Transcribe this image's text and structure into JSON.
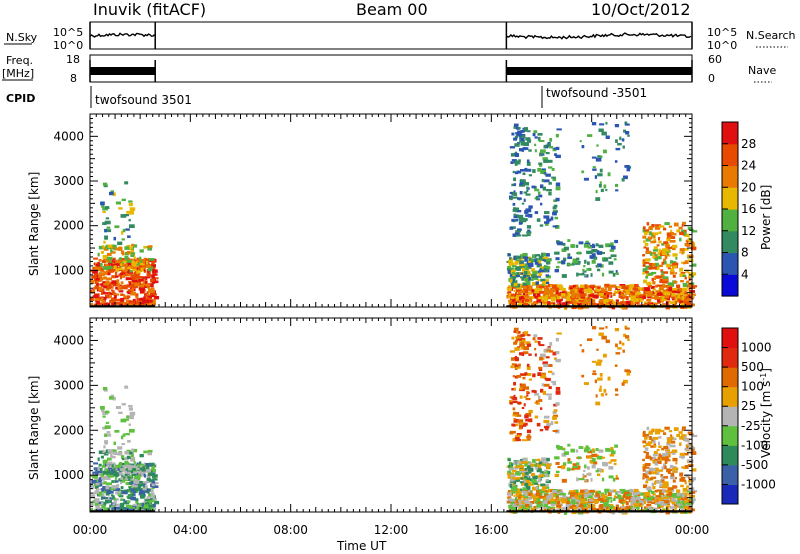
{
  "header": {
    "station": "Inuvik (fitACF)",
    "beam": "Beam 00",
    "date": "10/Oct/2012"
  },
  "panels": {
    "nsky": {
      "label": "N.Sky",
      "ticks": [
        "10^5",
        "10^0"
      ]
    },
    "freq": {
      "label_line1": "Freq.",
      "label_line2": "[MHz]",
      "ticks": [
        "18",
        "8"
      ]
    },
    "nsearch": {
      "label": "N.Search",
      "ticks": [
        "10^5",
        "10^0"
      ]
    },
    "nave": {
      "label": "Nave",
      "ticks": [
        "60",
        "0"
      ]
    },
    "cpid": {
      "label": "CPID",
      "programs": [
        "twofsound 3501",
        "twofsound -3501"
      ]
    }
  },
  "colors": {
    "power_scale": [
      "#0a0ad8",
      "#2a55b0",
      "#338a60",
      "#50b040",
      "#e8b800",
      "#e87a00",
      "#e84a00",
      "#e01010"
    ],
    "velocity_scale": [
      "#1a2ab8",
      "#3a60a8",
      "#2e8a5a",
      "#5ec03c",
      "#b4b4b4",
      "#e8a000",
      "#e06a00",
      "#e02a10",
      "#e01010"
    ]
  },
  "chart_data": [
    {
      "type": "heatmap",
      "title": "",
      "xlabel": "Time UT",
      "ylabel": "Slant Range [km]",
      "x_ticks": [
        "00:00",
        "04:00",
        "08:00",
        "12:00",
        "16:00",
        "20:00",
        "00:00"
      ],
      "y_ticks": [
        1000,
        2000,
        3000,
        4000
      ],
      "xlim_hours": [
        0,
        24
      ],
      "ylim": [
        180,
        4500
      ],
      "colorbar": {
        "label": "Power [dB]",
        "ticks": [
          "4",
          "8",
          "12",
          "16",
          "20",
          "24",
          "28"
        ],
        "range": [
          0,
          30
        ]
      },
      "data_intervals_hours": [
        [
          0,
          2.6
        ],
        [
          16.6,
          24
        ]
      ]
    },
    {
      "type": "heatmap",
      "title": "",
      "xlabel": "Time UT",
      "ylabel": "Slant Range [km]",
      "x_ticks": [
        "00:00",
        "04:00",
        "08:00",
        "12:00",
        "16:00",
        "20:00",
        "00:00"
      ],
      "y_ticks": [
        1000,
        2000,
        3000,
        4000
      ],
      "xlim_hours": [
        0,
        24
      ],
      "ylim": [
        180,
        4500
      ],
      "colorbar": {
        "label": "Velocity [m s^-1]",
        "ticks": [
          "1000",
          "500",
          "100",
          "25",
          "-25",
          "-100",
          "-500",
          "-1000"
        ]
      },
      "data_intervals_hours": [
        [
          0,
          2.6
        ],
        [
          16.6,
          24
        ]
      ]
    }
  ]
}
